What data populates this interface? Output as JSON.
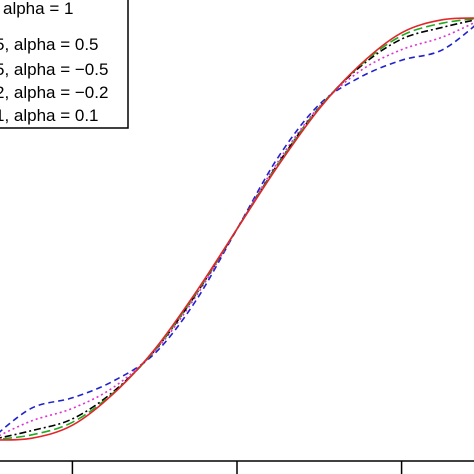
{
  "chart_data": {
    "type": "line",
    "title": "",
    "xlabel": "",
    "ylabel": "",
    "x_range": [
      -3,
      3
    ],
    "y_range": [
      0,
      1
    ],
    "grid": false,
    "legend_position": "top-left",
    "legend": {
      "entries": [
        "alpha = 1",
        "5, alpha = 0.5",
        "5, alpha = −0.5",
        "2, alpha = −0.2",
        "1, alpha = 0.1"
      ]
    },
    "series": [
      {
        "label": "alpha = 1",
        "color": "#e3262b",
        "line_style": "solid",
        "x": [
          -3,
          -2.5,
          -2,
          -1.5,
          -1,
          -0.5,
          0,
          0.5,
          1,
          1.5,
          2,
          2.5,
          3
        ],
        "y": [
          0.0,
          0.004,
          0.035,
          0.11,
          0.215,
          0.35,
          0.5,
          0.65,
          0.785,
          0.89,
          0.965,
          0.996,
          1.0
        ]
      },
      {
        "label": "5, alpha = 0.5",
        "color": "#22aa22",
        "line_style": "dash-long",
        "x": [
          -3,
          -2.5,
          -2,
          -1.5,
          -1,
          -0.5,
          0,
          0.5,
          1,
          1.5,
          2,
          2.5,
          3
        ],
        "y": [
          0.0,
          0.012,
          0.042,
          0.112,
          0.213,
          0.347,
          0.5,
          0.653,
          0.787,
          0.888,
          0.958,
          0.988,
          1.0
        ]
      },
      {
        "label": "5, alpha = −0.5",
        "color": "#000000",
        "line_style": "dash-dot",
        "x": [
          -3,
          -2.5,
          -2,
          -1.5,
          -1,
          -0.5,
          0,
          0.5,
          1,
          1.5,
          2,
          2.5,
          3
        ],
        "y": [
          0.0,
          0.022,
          0.05,
          0.115,
          0.212,
          0.345,
          0.5,
          0.655,
          0.788,
          0.885,
          0.95,
          0.978,
          1.0
        ]
      },
      {
        "label": "2, alpha = −0.2",
        "color": "#e02fd4",
        "line_style": "dotted",
        "x": [
          -3,
          -2.5,
          -2,
          -1.5,
          -1,
          -0.5,
          0,
          0.5,
          1,
          1.5,
          2,
          2.5,
          3
        ],
        "y": [
          0.0,
          0.045,
          0.075,
          0.125,
          0.21,
          0.34,
          0.5,
          0.66,
          0.79,
          0.875,
          0.925,
          0.955,
          1.0
        ]
      },
      {
        "label": "1, alpha = 0.1",
        "color": "#2222cc",
        "line_style": "dashed",
        "x": [
          -3,
          -2.5,
          -2,
          -1.5,
          -1,
          -0.5,
          0,
          0.5,
          1,
          1.5,
          2,
          2.5,
          3
        ],
        "y": [
          0.0,
          0.075,
          0.1,
          0.14,
          0.205,
          0.33,
          0.5,
          0.67,
          0.795,
          0.86,
          0.9,
          0.925,
          1.0
        ]
      }
    ]
  }
}
